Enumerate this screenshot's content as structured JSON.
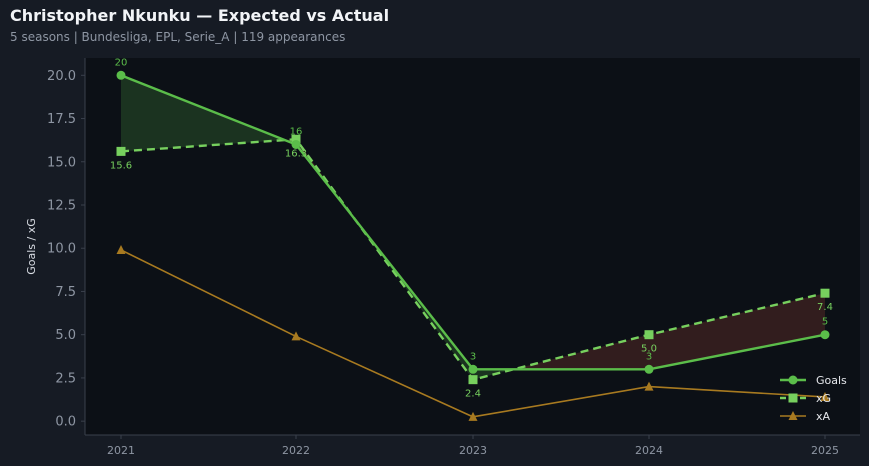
{
  "header": {
    "title": "Christopher Nkunku — Expected vs Actual",
    "subtitle": "5 seasons | Bundesliga, EPL, Serie_A | 119 appearances"
  },
  "chart_data": {
    "type": "line",
    "x": [
      "2021",
      "2022",
      "2023",
      "2024",
      "2025"
    ],
    "ylabel": "Goals / xG",
    "ylim": [
      -0.8,
      21
    ],
    "yticks": [
      0.0,
      2.5,
      5.0,
      7.5,
      10.0,
      12.5,
      15.0,
      17.5,
      20.0
    ],
    "grid": false,
    "legend_position": "bottom-right",
    "series": [
      {
        "name": "Goals",
        "values": [
          20,
          16,
          3,
          3,
          5
        ],
        "labels": [
          "20",
          "16",
          "3",
          "3",
          "5"
        ],
        "color": "#5bbd4a",
        "marker": "circle",
        "dash": "solid"
      },
      {
        "name": "xG",
        "values": [
          15.6,
          16.3,
          2.4,
          5.0,
          7.4
        ],
        "labels": [
          "15.6",
          "16.3",
          "2.4",
          "5.0",
          "7.4"
        ],
        "color": "#77d05e",
        "marker": "square",
        "dash": "dashed"
      },
      {
        "name": "xA",
        "values": [
          9.9,
          4.9,
          0.25,
          2.0,
          1.4
        ],
        "color": "#a87a20",
        "marker": "triangle",
        "dash": "solid"
      }
    ],
    "colors": {
      "over_fill": "#1f3a22",
      "under_fill": "#3a2020",
      "plot_bg": "#0c1016",
      "axis": "#3a404c"
    }
  }
}
